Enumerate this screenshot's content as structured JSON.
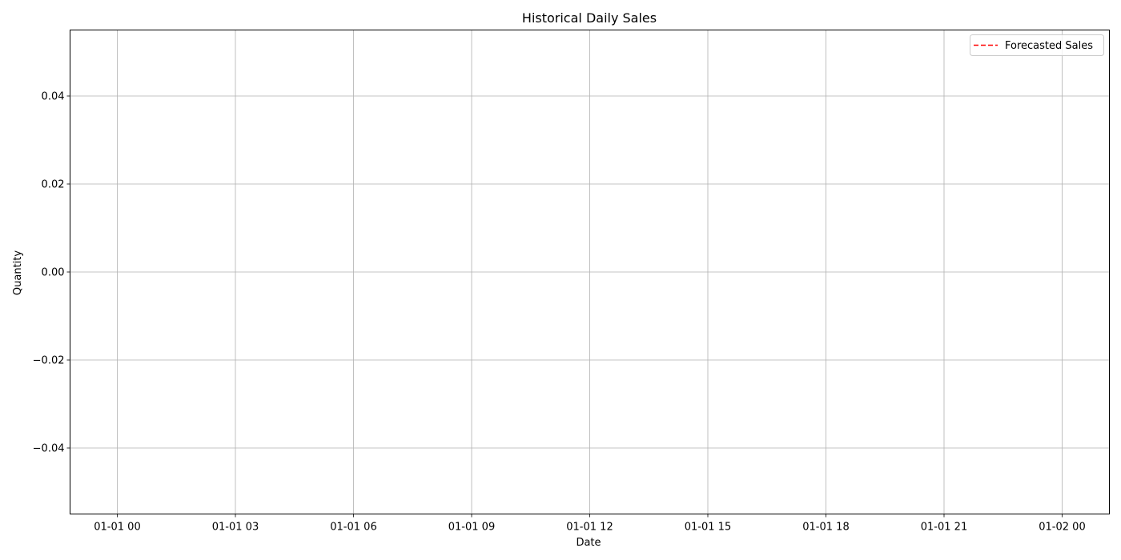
{
  "chart_data": {
    "type": "line",
    "title": "Historical Daily Sales",
    "xlabel": "Date",
    "ylabel": "Quantity",
    "x_ticks": [
      "01-01 00",
      "01-01 03",
      "01-01 06",
      "01-01 09",
      "01-01 12",
      "01-01 15",
      "01-01 18",
      "01-01 21",
      "01-02 00"
    ],
    "y_ticks": [
      "−0.04",
      "−0.02",
      "0.00",
      "0.02",
      "0.04"
    ],
    "y_tick_values": [
      -0.04,
      -0.02,
      0.0,
      0.02,
      0.04
    ],
    "ylim": [
      -0.055,
      0.055
    ],
    "grid": true,
    "legend_position": "top-right",
    "series": [
      {
        "name": "Forecasted Sales",
        "color": "#ff0000",
        "line_style": "dashed",
        "x": [],
        "values": []
      }
    ]
  }
}
